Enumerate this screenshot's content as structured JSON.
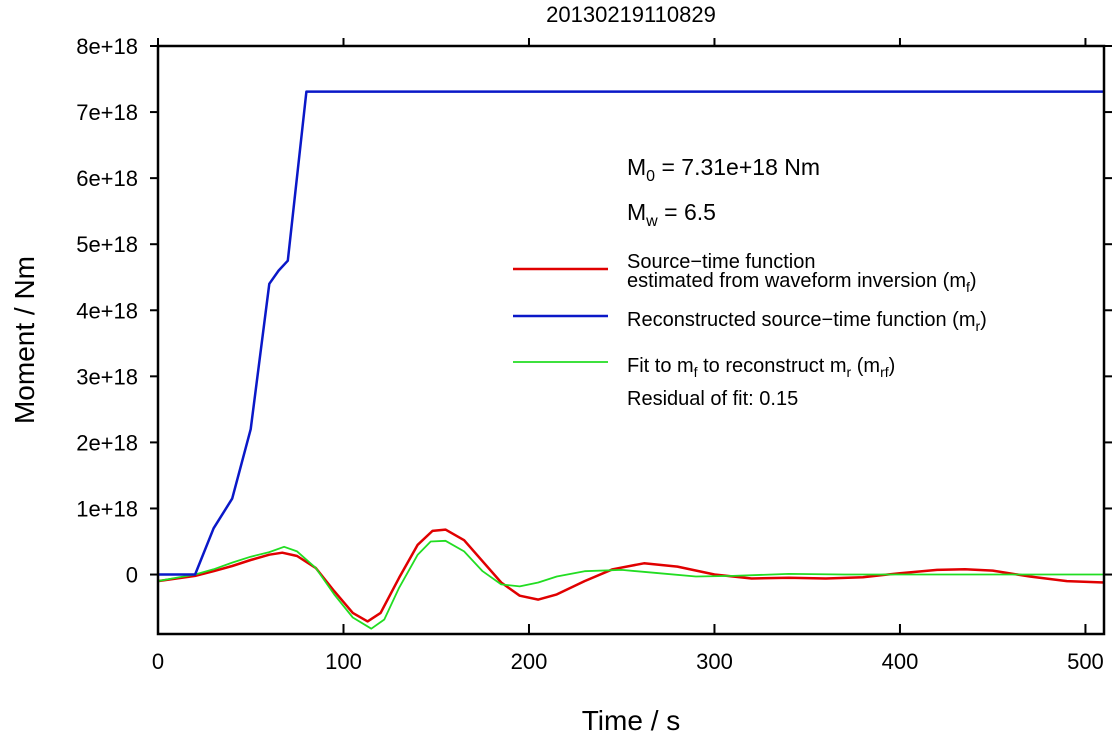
{
  "chart_data": {
    "type": "line",
    "title": "20130219110829",
    "xlabel": "Time / s",
    "ylabel": "Moment / Nm",
    "xlim": [
      0,
      510
    ],
    "ylim": [
      -9e+17,
      8e+18
    ],
    "xticks": [
      0,
      100,
      200,
      300,
      400,
      500
    ],
    "xtick_labels": [
      "0",
      "100",
      "200",
      "300",
      "400",
      "500"
    ],
    "yticks": [
      0,
      1e+18,
      2e+18,
      3e+18,
      4e+18,
      5e+18,
      6e+18,
      7e+18,
      8e+18
    ],
    "ytick_labels": [
      "0",
      "1e+18",
      "2e+18",
      "3e+18",
      "4e+18",
      "5e+18",
      "6e+18",
      "7e+18",
      "8e+18"
    ],
    "grid": false,
    "legend_position": "right",
    "annotations": {
      "m0": {
        "label": "M",
        "sub": "0",
        "text": " = 7.31e+18 Nm"
      },
      "mw": {
        "label": "M",
        "sub": "w",
        "text": " = 6.5"
      },
      "residual": "Residual of fit: 0.15"
    },
    "series": [
      {
        "name_lines": [
          "Source−time function",
          "estimated from waveform inversion (m",
          "f",
          ")"
        ],
        "color": "#e00000",
        "width": 2.5,
        "x": [
          0,
          10,
          20,
          30,
          40,
          50,
          60,
          67,
          75,
          85,
          95,
          105,
          113,
          120,
          130,
          140,
          148,
          155,
          165,
          175,
          185,
          195,
          205,
          215,
          230,
          245,
          262,
          280,
          300,
          320,
          340,
          360,
          380,
          400,
          420,
          435,
          450,
          470,
          490,
          510
        ],
        "y": [
          -1e+17,
          -6e+16,
          -2e+16,
          5e+16,
          1.3e+17,
          2.2e+17,
          3e+17,
          3.3e+17,
          2.8e+17,
          1e+17,
          -2.5e+17,
          -5.8e+17,
          -7.1e+17,
          -5.8e+17,
          -5e+16,
          4.5e+17,
          6.6e+17,
          6.8e+17,
          5.2e+17,
          2e+17,
          -1.2e+17,
          -3.2e+17,
          -3.8e+17,
          -3e+17,
          -1e+17,
          8e+16,
          1.7e+17,
          1.2e+17,
          0.0,
          -6e+16,
          -5e+16,
          -6e+16,
          -4e+16,
          2e+16,
          7e+16,
          8e+16,
          6e+16,
          -3e+16,
          -1e+17,
          -1.2e+17
        ]
      },
      {
        "name": "Reconstructed source−time function (m",
        "name_sub": "r",
        "name_end": ")",
        "color": "#0a18c8",
        "width": 2.5,
        "x": [
          0,
          20,
          30,
          40,
          50,
          60,
          65,
          70,
          80,
          90,
          200,
          300,
          400,
          510
        ],
        "y": [
          0,
          0,
          7e+17,
          1.15e+18,
          2.2e+18,
          4.4e+18,
          4.6e+18,
          4.75e+18,
          7.31e+18,
          7.31e+18,
          7.31e+18,
          7.31e+18,
          7.31e+18,
          7.31e+18
        ]
      },
      {
        "name_parts": [
          "Fit to m",
          "f",
          " to reconstruct m",
          "r",
          " (m",
          "rf",
          ")"
        ],
        "color": "#22dd22",
        "width": 1.8,
        "x": [
          0,
          10,
          20,
          30,
          40,
          50,
          60,
          68,
          75,
          85,
          95,
          105,
          115,
          122,
          130,
          140,
          147,
          155,
          165,
          175,
          185,
          195,
          205,
          215,
          230,
          250,
          270,
          290,
          310,
          340,
          370,
          400,
          430,
          460,
          490,
          510
        ],
        "y": [
          -1e+17,
          -5e+16,
          0.0,
          8e+16,
          1.8e+17,
          2.7e+17,
          3.4e+17,
          4.2e+17,
          3.5e+17,
          1e+17,
          -3e+17,
          -6.5e+17,
          -8.2e+17,
          -6.8e+17,
          -2e+17,
          3e+17,
          5e+17,
          5.1e+17,
          3.5e+17,
          5e+16,
          -1.5e+17,
          -1.8e+17,
          -1.2e+17,
          -3e+16,
          5e+16,
          7e+16,
          2e+16,
          -3e+16,
          -2e+16,
          1e+16,
          0.0,
          0.0,
          0.0,
          0.0,
          0.0,
          0.0
        ]
      }
    ]
  }
}
